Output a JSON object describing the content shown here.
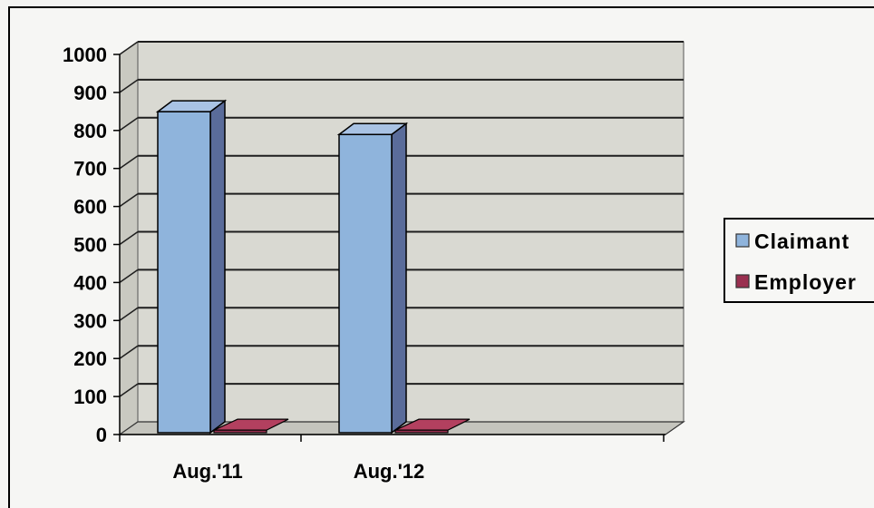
{
  "chart_data": {
    "type": "bar",
    "categories": [
      "Aug.'11",
      "Aug.'12"
    ],
    "series": [
      {
        "name": "Claimant",
        "values": [
          835,
          775
        ]
      },
      {
        "name": "Employer",
        "values": [
          2,
          2
        ]
      }
    ],
    "yticks": [
      "0",
      "100",
      "200",
      "300",
      "400",
      "500",
      "600",
      "700",
      "800",
      "900",
      "1000"
    ],
    "ylim": [
      0,
      1000
    ],
    "grid": true,
    "legend": "right",
    "three_d": true,
    "colors": {
      "claimant": "#8fb4dc",
      "claimant_side": "#5a6c9a",
      "claimant_top": "#a9c3e4",
      "employer": "#9a3050",
      "employer_top": "#b3405f",
      "wall": "#d9d9d2",
      "floor": "#c4c4bd",
      "side_wall": "#c9c9c1",
      "gridline": "#1e1e1e"
    }
  }
}
